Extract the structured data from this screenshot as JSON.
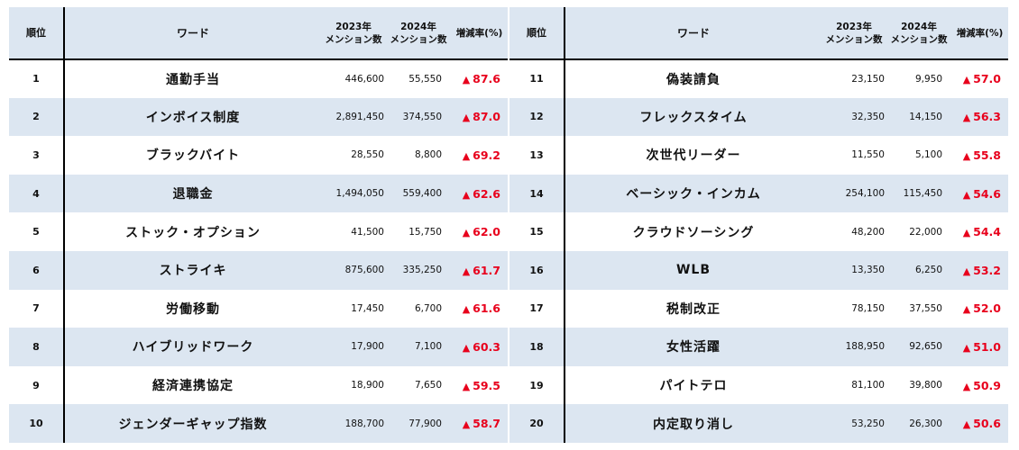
{
  "header": {
    "rank": "順位",
    "word": "ワード",
    "y2023_line1": "2023年",
    "y2023_line2": "メンション数",
    "y2024_line1": "2024年",
    "y2024_line2": "メンション数",
    "rate": "増減率(%)"
  },
  "trend_symbol": "▲",
  "rows_left": [
    {
      "rank": "1",
      "word": "通勤手当",
      "y2023": "446,600",
      "y2024": "55,550",
      "rate": "87.6"
    },
    {
      "rank": "2",
      "word": "インボイス制度",
      "y2023": "2,891,450",
      "y2024": "374,550",
      "rate": "87.0"
    },
    {
      "rank": "3",
      "word": "ブラックバイト",
      "y2023": "28,550",
      "y2024": "8,800",
      "rate": "69.2"
    },
    {
      "rank": "4",
      "word": "退職金",
      "y2023": "1,494,050",
      "y2024": "559,400",
      "rate": "62.6"
    },
    {
      "rank": "5",
      "word": "ストック・オプション",
      "y2023": "41,500",
      "y2024": "15,750",
      "rate": "62.0"
    },
    {
      "rank": "6",
      "word": "ストライキ",
      "y2023": "875,600",
      "y2024": "335,250",
      "rate": "61.7"
    },
    {
      "rank": "7",
      "word": "労働移動",
      "y2023": "17,450",
      "y2024": "6,700",
      "rate": "61.6"
    },
    {
      "rank": "8",
      "word": "ハイブリッドワーク",
      "y2023": "17,900",
      "y2024": "7,100",
      "rate": "60.3"
    },
    {
      "rank": "9",
      "word": "経済連携協定",
      "y2023": "18,900",
      "y2024": "7,650",
      "rate": "59.5"
    },
    {
      "rank": "10",
      "word": "ジェンダーギャップ指数",
      "y2023": "188,700",
      "y2024": "77,900",
      "rate": "58.7"
    }
  ],
  "rows_right": [
    {
      "rank": "11",
      "word": "偽装請負",
      "y2023": "23,150",
      "y2024": "9,950",
      "rate": "57.0"
    },
    {
      "rank": "12",
      "word": "フレックスタイム",
      "y2023": "32,350",
      "y2024": "14,150",
      "rate": "56.3"
    },
    {
      "rank": "13",
      "word": "次世代リーダー",
      "y2023": "11,550",
      "y2024": "5,100",
      "rate": "55.8"
    },
    {
      "rank": "14",
      "word": "ベーシック・インカム",
      "y2023": "254,100",
      "y2024": "115,450",
      "rate": "54.6"
    },
    {
      "rank": "15",
      "word": "クラウドソーシング",
      "y2023": "48,200",
      "y2024": "22,000",
      "rate": "54.4"
    },
    {
      "rank": "16",
      "word": "WLB",
      "y2023": "13,350",
      "y2024": "6,250",
      "rate": "53.2"
    },
    {
      "rank": "17",
      "word": "税制改正",
      "y2023": "78,150",
      "y2024": "37,550",
      "rate": "52.0"
    },
    {
      "rank": "18",
      "word": "女性活躍",
      "y2023": "188,950",
      "y2024": "92,650",
      "rate": "51.0"
    },
    {
      "rank": "19",
      "word": "パイトテロ",
      "y2023": "81,100",
      "y2024": "39,800",
      "rate": "50.9"
    },
    {
      "rank": "20",
      "word": "内定取り消し",
      "y2023": "53,250",
      "y2024": "26,300",
      "rate": "50.6"
    }
  ],
  "colors": {
    "header_bg": "#dce6f1",
    "alt_row_bg": "#dce6f1",
    "rate_red": "#e8001c"
  }
}
